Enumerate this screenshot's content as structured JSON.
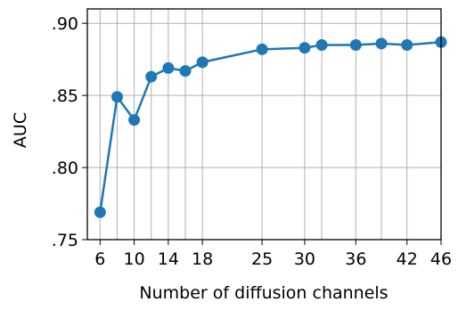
{
  "chart_data": {
    "type": "line",
    "xlabel": "Number of diffusion channels",
    "ylabel": "AUC",
    "xlim": [
      4.5,
      46
    ],
    "ylim": [
      0.75,
      0.91
    ],
    "x_ticks": [
      6,
      10,
      14,
      18,
      25,
      30,
      36,
      42,
      46
    ],
    "x_tick_labels": [
      "6",
      "10",
      "14",
      "18",
      "25",
      "30",
      "36",
      "42",
      "46"
    ],
    "x_gridlines": [
      6,
      8,
      10,
      12,
      14,
      16,
      18,
      25,
      30,
      32,
      36,
      39,
      42,
      46
    ],
    "y_ticks": [
      0.75,
      0.8,
      0.85,
      0.9
    ],
    "y_tick_labels": [
      ".75",
      ".80",
      ".85",
      ".90"
    ],
    "grid": true,
    "line_color": "#1f77b4",
    "series": [
      {
        "x": [
          6,
          8,
          10,
          12,
          14,
          16,
          18,
          25,
          30,
          32,
          36,
          39,
          42,
          46
        ],
        "y": [
          0.769,
          0.849,
          0.833,
          0.863,
          0.869,
          0.867,
          0.873,
          0.882,
          0.883,
          0.885,
          0.885,
          0.886,
          0.885,
          0.887
        ]
      }
    ]
  }
}
